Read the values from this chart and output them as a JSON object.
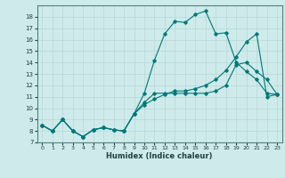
{
  "xlabel": "Humidex (Indice chaleur)",
  "bg_color": "#ceeaea",
  "grid_color": "#b8d8d8",
  "line_color": "#007878",
  "xlim": [
    -0.5,
    23.5
  ],
  "ylim": [
    7,
    19
  ],
  "yticks": [
    7,
    8,
    9,
    10,
    11,
    12,
    13,
    14,
    15,
    16,
    17,
    18
  ],
  "xticks": [
    0,
    1,
    2,
    3,
    4,
    5,
    6,
    7,
    8,
    9,
    10,
    11,
    12,
    13,
    14,
    15,
    16,
    17,
    18,
    19,
    20,
    21,
    22,
    23
  ],
  "line1_x": [
    0,
    1,
    2,
    3,
    4,
    5,
    6,
    7,
    8,
    9,
    10,
    11,
    12,
    13,
    14,
    15,
    16,
    17,
    18,
    19,
    20,
    21,
    22,
    23
  ],
  "line1_y": [
    8.5,
    8.0,
    9.0,
    8.0,
    7.5,
    8.1,
    8.3,
    8.1,
    8.0,
    9.5,
    11.3,
    14.2,
    16.5,
    17.6,
    17.5,
    18.2,
    18.5,
    16.5,
    16.6,
    14.0,
    13.2,
    12.5,
    11.3,
    11.2
  ],
  "line2_x": [
    0,
    1,
    2,
    3,
    4,
    5,
    6,
    7,
    8,
    9,
    10,
    11,
    12,
    13,
    14,
    15,
    16,
    17,
    18,
    19,
    20,
    21,
    22,
    23
  ],
  "line2_y": [
    8.5,
    8.0,
    9.0,
    8.0,
    7.5,
    8.1,
    8.3,
    8.1,
    8.0,
    9.5,
    10.5,
    11.3,
    11.3,
    11.3,
    11.3,
    11.3,
    11.3,
    11.5,
    12.0,
    13.8,
    14.0,
    13.2,
    12.5,
    11.2
  ],
  "line3_x": [
    0,
    1,
    2,
    3,
    4,
    5,
    6,
    7,
    8,
    9,
    10,
    11,
    12,
    13,
    14,
    15,
    16,
    17,
    18,
    19,
    20,
    21,
    22,
    23
  ],
  "line3_y": [
    8.5,
    8.0,
    9.0,
    8.0,
    7.5,
    8.1,
    8.3,
    8.1,
    8.0,
    9.5,
    10.3,
    10.8,
    11.2,
    11.5,
    11.5,
    11.7,
    12.0,
    12.5,
    13.3,
    14.5,
    15.8,
    16.5,
    11.0,
    11.2
  ]
}
